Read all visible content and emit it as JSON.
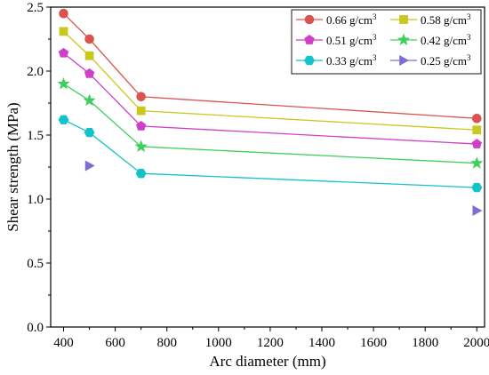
{
  "chart_data": {
    "type": "line",
    "title": "",
    "xlabel": "Arc diameter (mm)",
    "ylabel": "Shear strength (MPa)",
    "xlim": [
      350,
      2030
    ],
    "ylim": [
      0.0,
      2.5
    ],
    "xticks": [
      400,
      600,
      800,
      1000,
      1200,
      1400,
      1600,
      1800,
      2000
    ],
    "xtick_labels": [
      "400",
      "600",
      "800",
      "1000",
      "1200",
      "1400",
      "1600",
      "1800",
      "2000"
    ],
    "yticks": [
      0.0,
      0.5,
      1.0,
      1.5,
      2.0,
      2.5
    ],
    "ytick_labels": [
      "0.0",
      "0.5",
      "1.0",
      "1.5",
      "2.0",
      "2.5"
    ],
    "grid": false,
    "legend_position": "top-right",
    "series": [
      {
        "name": "0.66 g/cm",
        "sup": "3",
        "color": "#d9534f",
        "marker": "circle",
        "line": true,
        "x": [
          400,
          500,
          700,
          2000
        ],
        "y": [
          2.45,
          2.25,
          1.8,
          1.63
        ]
      },
      {
        "name": "0.58 g/cm",
        "sup": "3",
        "color": "#c8c81e",
        "marker": "square",
        "line": true,
        "x": [
          400,
          500,
          700,
          2000
        ],
        "y": [
          2.31,
          2.12,
          1.69,
          1.54
        ]
      },
      {
        "name": "0.51 g/cm",
        "sup": "3",
        "color": "#d13fc8",
        "marker": "pentagon",
        "line": true,
        "x": [
          400,
          500,
          700,
          2000
        ],
        "y": [
          2.14,
          1.98,
          1.57,
          1.43
        ]
      },
      {
        "name": "0.42 g/cm",
        "sup": "3",
        "color": "#3fcf5c",
        "marker": "star",
        "line": true,
        "x": [
          400,
          500,
          700,
          2000
        ],
        "y": [
          1.9,
          1.77,
          1.41,
          1.28
        ]
      },
      {
        "name": "0.33 g/cm",
        "sup": "3",
        "color": "#12c3c9",
        "marker": "hexagon",
        "line": true,
        "x": [
          400,
          500,
          700,
          2000
        ],
        "y": [
          1.62,
          1.52,
          1.2,
          1.09
        ]
      },
      {
        "name": "0.25 g/cm",
        "sup": "3",
        "color": "#7b6fd6",
        "marker": "triangle-right",
        "line": false,
        "x": [
          500,
          2000
        ],
        "y": [
          1.26,
          0.91
        ]
      }
    ]
  }
}
